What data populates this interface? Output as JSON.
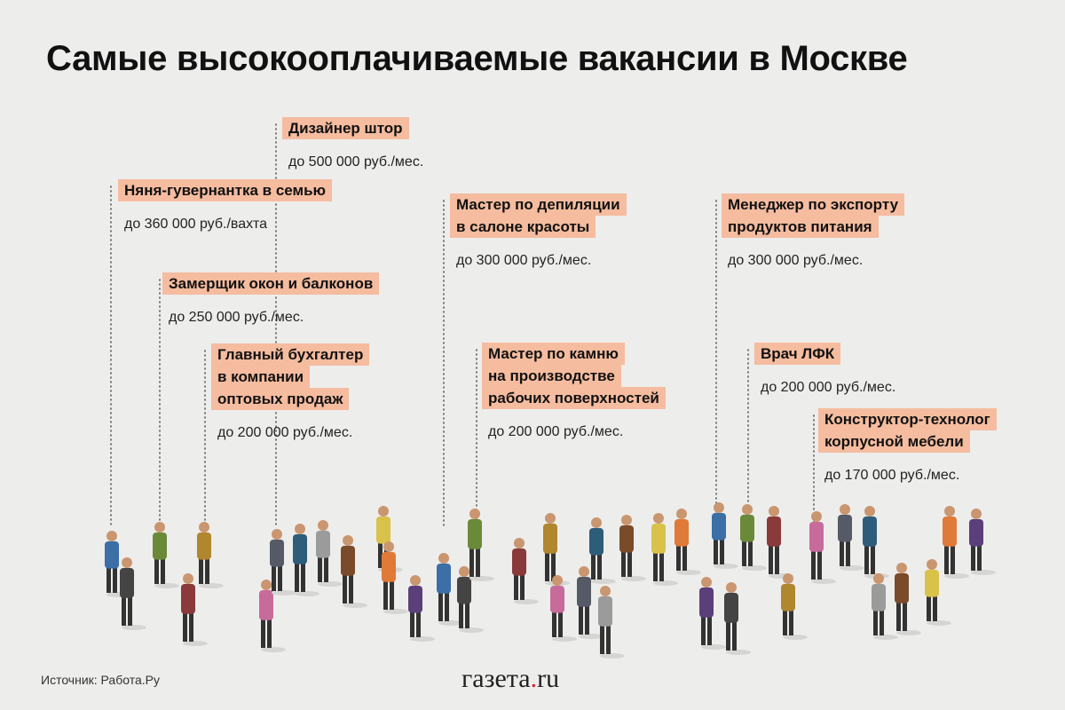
{
  "header": {
    "title": "Самые высокооплачиваемые вакансии в Москве"
  },
  "items": [
    {
      "title": [
        "Дизайнер штор"
      ],
      "salary": "до 500 000 руб./мес."
    },
    {
      "title": [
        "Няня-гувернантка в семью"
      ],
      "salary": "до 360 000 руб./вахта"
    },
    {
      "title": [
        "Замерщик окон и балконов"
      ],
      "salary": "до 250 000 руб./мес."
    },
    {
      "title": [
        "Главный бухгалтер",
        "в компании",
        "оптовых продаж"
      ],
      "salary": "до 200 000 руб./мес."
    },
    {
      "title": [
        "Мастер по депиляции",
        "в салоне красоты"
      ],
      "salary": "до 300 000 руб./мес."
    },
    {
      "title": [
        "Мастер по камню",
        "на производстве",
        "рабочих поверхностей"
      ],
      "salary": "до 200 000 руб./мес."
    },
    {
      "title": [
        "Менеджер по экспорту",
        "продуктов питания"
      ],
      "salary": "до 300 000 руб./мес."
    },
    {
      "title": [
        "Врач ЛФК"
      ],
      "salary": "до 200 000 руб./мес."
    },
    {
      "title": [
        "Конструктор-технолог",
        "корпусной мебели"
      ],
      "salary": "до 170 000 руб./мес."
    }
  ],
  "footer": {
    "source": "Источник: Работа.Ру",
    "logo": [
      "газета",
      ".",
      "ru"
    ]
  }
}
